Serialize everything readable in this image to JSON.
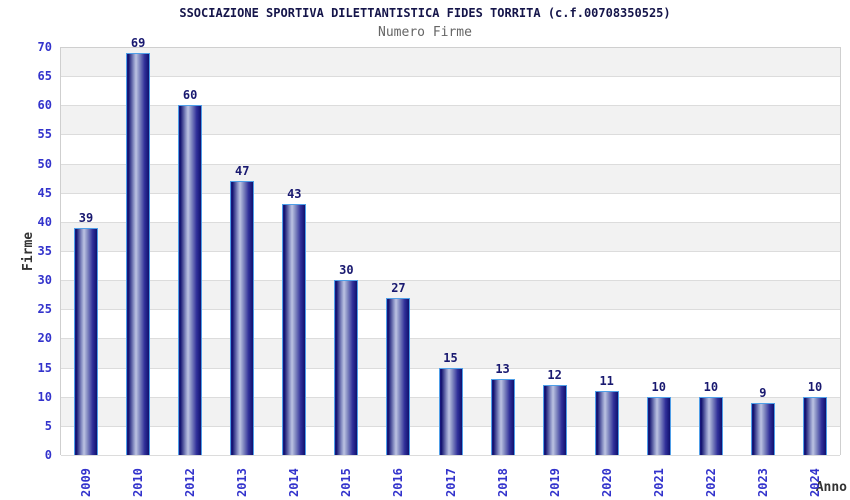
{
  "chart_data": {
    "type": "bar",
    "title": "SSOCIAZIONE SPORTIVA DILETTANTISTICA FIDES TORRITA (c.f.00708350525)",
    "subtitle": "Numero Firme",
    "xlabel": "Anno",
    "ylabel": "Firme",
    "categories": [
      "2009",
      "2010",
      "2012",
      "2013",
      "2014",
      "2015",
      "2016",
      "2017",
      "2018",
      "2019",
      "2020",
      "2021",
      "2022",
      "2023",
      "2024"
    ],
    "values": [
      39,
      69,
      60,
      47,
      43,
      30,
      27,
      15,
      13,
      12,
      11,
      10,
      10,
      9,
      10
    ],
    "ylim": [
      0,
      70
    ],
    "ytick_step": 5,
    "yticks": [
      0,
      5,
      10,
      15,
      20,
      25,
      30,
      35,
      40,
      45,
      50,
      55,
      60,
      65,
      70
    ],
    "grid": "horizontal-bands-alternating",
    "legend_position": "none",
    "colors": {
      "bar_edge_dark": "#10106e",
      "bar_dark": "#1b1b88",
      "bar_mid": "#8890c4",
      "bar_highlight": "#bcc3e2",
      "bar_border": "#4f9fe8",
      "tick_label_blue": "#3333cc",
      "value_label_navy": "#191970",
      "title_color": "#15154a",
      "subtitle_color": "#666666",
      "axis_title_color": "#333333",
      "band_gray": "#f2f2f2",
      "band_white": "#ffffff",
      "gridline": "#dcdcdc",
      "plot_border": "#cfcfcf"
    }
  }
}
